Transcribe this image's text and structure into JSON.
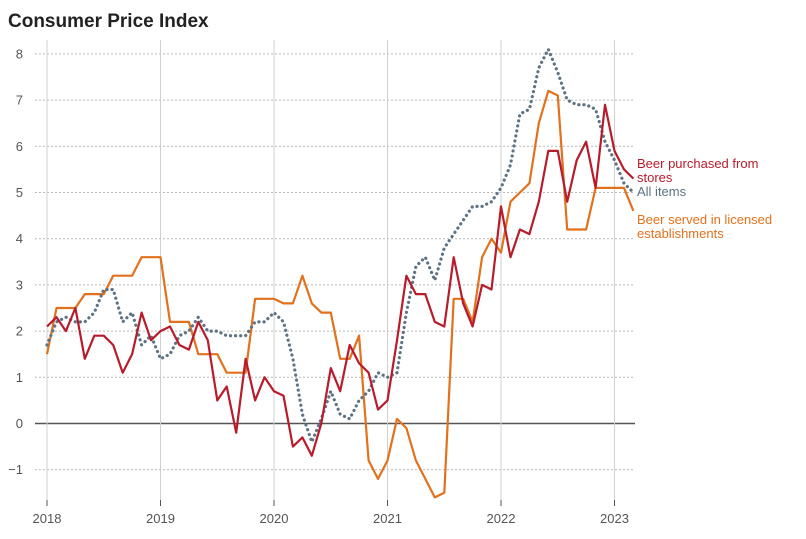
{
  "chart_data": {
    "type": "line",
    "title": "Consumer Price Index",
    "xlabel": "",
    "ylabel": "",
    "ylim": [
      -1.6,
      8.2
    ],
    "y_ticks": [
      "8",
      "7",
      "6",
      "5",
      "4",
      "3",
      "2",
      "1",
      "0",
      "−1"
    ],
    "x_ticks": [
      "2018",
      "2019",
      "2020",
      "2021",
      "2022",
      "2023"
    ],
    "grid": "horizontal dotted",
    "x_start": "2018-01",
    "x_end": "2023-03",
    "series": [
      {
        "name": "Beer purchased from stores",
        "label_lines": [
          "Beer purchased from",
          "stores"
        ],
        "color": "#b71c2c",
        "style": "solid",
        "values": [
          2.1,
          2.3,
          2.0,
          2.5,
          1.4,
          1.9,
          1.9,
          1.7,
          1.1,
          1.5,
          2.4,
          1.8,
          2.0,
          2.1,
          1.7,
          1.6,
          2.2,
          1.8,
          0.5,
          0.8,
          -0.2,
          1.4,
          0.5,
          1.0,
          0.7,
          0.6,
          -0.5,
          -0.3,
          -0.7,
          0.0,
          1.2,
          0.7,
          1.7,
          1.3,
          1.1,
          0.3,
          0.5,
          1.8,
          3.2,
          2.8,
          2.8,
          2.2,
          2.1,
          3.6,
          2.6,
          2.1,
          3.0,
          2.9,
          4.7,
          3.6,
          4.2,
          4.1,
          4.8,
          5.9,
          5.9,
          4.8,
          5.7,
          6.1,
          5.1,
          6.9,
          5.9,
          5.5,
          5.3
        ]
      },
      {
        "name": "All items",
        "label_lines": [
          "All items"
        ],
        "color": "#5d7384",
        "style": "dotted",
        "values": [
          1.7,
          2.2,
          2.3,
          2.2,
          2.2,
          2.4,
          2.9,
          2.9,
          2.2,
          2.4,
          1.7,
          1.9,
          1.4,
          1.5,
          1.9,
          2.0,
          2.3,
          2.0,
          2.0,
          1.9,
          1.9,
          1.9,
          2.2,
          2.2,
          2.4,
          2.2,
          1.4,
          0.2,
          -0.4,
          0.1,
          0.7,
          0.2,
          0.1,
          0.5,
          0.7,
          1.1,
          1.0,
          1.1,
          2.4,
          3.4,
          3.6,
          3.1,
          3.8,
          4.1,
          4.4,
          4.7,
          4.7,
          4.8,
          5.1,
          5.6,
          6.7,
          6.8,
          7.7,
          8.1,
          7.6,
          7.0,
          6.9,
          6.9,
          6.8,
          6.1,
          5.7,
          5.2,
          5.0
        ]
      },
      {
        "name": "Beer served in licensed establishments",
        "label_lines": [
          "Beer served in licensed",
          "establishments"
        ],
        "color": "#e2711d",
        "style": "solid",
        "values": [
          1.5,
          2.5,
          2.5,
          2.5,
          2.8,
          2.8,
          2.8,
          3.2,
          3.2,
          3.2,
          3.6,
          3.6,
          3.6,
          2.2,
          2.2,
          2.2,
          1.5,
          1.5,
          1.5,
          1.1,
          1.1,
          1.1,
          2.7,
          2.7,
          2.7,
          2.6,
          2.6,
          3.2,
          2.6,
          2.4,
          2.4,
          1.4,
          1.4,
          1.9,
          -0.8,
          -1.2,
          -0.8,
          0.1,
          -0.1,
          -0.8,
          -1.2,
          -1.6,
          -1.5,
          2.7,
          2.7,
          2.2,
          3.6,
          4.0,
          3.7,
          4.8,
          5.0,
          5.2,
          6.5,
          7.2,
          7.1,
          4.2,
          4.2,
          4.2,
          5.1,
          5.1,
          5.1,
          5.1,
          4.6
        ]
      }
    ]
  }
}
